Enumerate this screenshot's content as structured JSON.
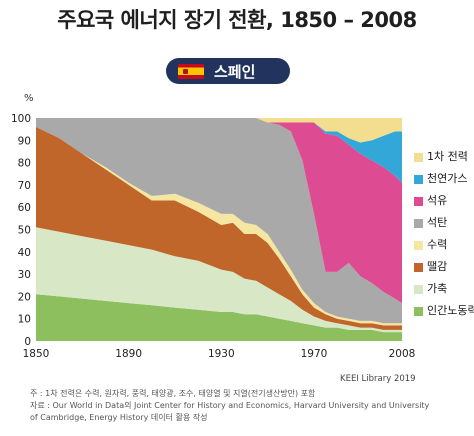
{
  "title": "주요국 에너지 장기 전환, 1850 – 2008",
  "country_label": "스페인",
  "credit": "KEEI Library 2019",
  "notes": [
    "주 : 1차 전력은 수력, 원자력, 풍력, 태양광, 조수, 태양열 및 지열(전기생산방만) 포함",
    "자료 : Our World in Data의 Joint Center for History and Economics, Harvard University and University",
    "of Cambridge, Energy History 데이터 활용 작성"
  ],
  "chart_data": {
    "type": "area",
    "stacked": true,
    "ylabel": "%",
    "ylim": [
      0,
      100
    ],
    "xlim": [
      1850,
      2008
    ],
    "yticks": [
      "0",
      "10",
      "20",
      "30",
      "40",
      "50",
      "60",
      "70",
      "80",
      "90",
      "100"
    ],
    "xticks": [
      "1850",
      "1890",
      "1930",
      "1970",
      "2008"
    ],
    "grid": false,
    "legend_position": "right",
    "x": [
      1850,
      1860,
      1870,
      1880,
      1890,
      1900,
      1910,
      1920,
      1930,
      1935,
      1940,
      1945,
      1950,
      1955,
      1960,
      1965,
      1970,
      1975,
      1980,
      1985,
      1990,
      1995,
      2000,
      2005,
      2008
    ],
    "series": [
      {
        "name": "인간노동력",
        "color": "#8dbf5e",
        "values": [
          21,
          20,
          19,
          18,
          17,
          16,
          15,
          14,
          13,
          13,
          12,
          12,
          11,
          10,
          9,
          8,
          7,
          6,
          6,
          5,
          5,
          5,
          4,
          4,
          4
        ]
      },
      {
        "name": "가축",
        "color": "#d8e8c6",
        "values": [
          30,
          29,
          28,
          27,
          26,
          25,
          23,
          22,
          19,
          18,
          16,
          15,
          13,
          11,
          9,
          6,
          4,
          3,
          2,
          2,
          1,
          1,
          1,
          1,
          1
        ]
      },
      {
        "name": "땔감",
        "color": "#c0662a",
        "values": [
          45,
          42,
          37,
          32,
          27,
          22,
          25,
          22,
          20,
          22,
          20,
          21,
          20,
          16,
          11,
          7,
          4,
          3,
          2,
          2,
          2,
          2,
          2,
          2,
          2
        ]
      },
      {
        "name": "수력",
        "color": "#f6e6a2",
        "values": [
          0,
          0,
          0,
          1,
          1,
          2,
          3,
          4,
          5,
          4,
          5,
          4,
          4,
          3,
          3,
          2,
          2,
          1,
          1,
          1,
          1,
          1,
          1,
          1,
          1
        ]
      },
      {
        "name": "석탄",
        "color": "#a9a9a9",
        "values": [
          4,
          9,
          16,
          22,
          29,
          35,
          34,
          38,
          43,
          43,
          47,
          48,
          50,
          57,
          62,
          58,
          40,
          18,
          20,
          25,
          20,
          17,
          14,
          11,
          9
        ]
      },
      {
        "name": "석유",
        "color": "#dd4c92",
        "values": [
          0,
          0,
          0,
          0,
          0,
          0,
          0,
          0,
          0,
          0,
          0,
          0,
          0,
          1,
          4,
          17,
          41,
          62,
          61,
          53,
          55,
          55,
          56,
          55,
          54
        ]
      },
      {
        "name": "천연가스",
        "color": "#33a8d8",
        "values": [
          0,
          0,
          0,
          0,
          0,
          0,
          0,
          0,
          0,
          0,
          0,
          0,
          0,
          0,
          0,
          0,
          0,
          1,
          2,
          3,
          5,
          9,
          14,
          20,
          23
        ]
      },
      {
        "name": "1차 전력",
        "color": "#f2de8e",
        "values": [
          0,
          0,
          0,
          0,
          0,
          0,
          0,
          0,
          0,
          0,
          0,
          0,
          2,
          2,
          2,
          2,
          2,
          6,
          6,
          9,
          11,
          10,
          8,
          6,
          6
        ]
      }
    ]
  }
}
